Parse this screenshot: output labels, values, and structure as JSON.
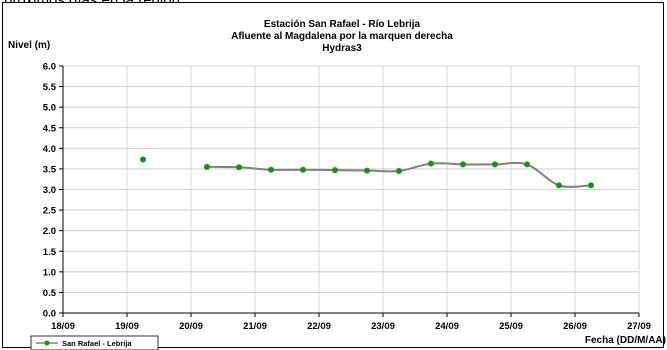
{
  "page": {
    "top_text": "próximos días en la región."
  },
  "chart_data": {
    "type": "scatter",
    "title": "Estación San Rafael - Río Lebrija",
    "subtitle": "Afluente al Magdalena por la marquen derecha",
    "subtitle2": "Hydras3",
    "xlabel": "Fecha (DD/M/AA)",
    "ylabel": "Nivel (m)",
    "ylim": [
      0,
      6
    ],
    "yticks": [
      "0.0",
      "0.5",
      "1.0",
      "1.5",
      "2.0",
      "2.5",
      "3.0",
      "3.5",
      "4.0",
      "4.5",
      "5.0",
      "5.5",
      "6.0"
    ],
    "xlim": [
      0,
      9
    ],
    "xticks": [
      "18/09",
      "19/09",
      "20/09",
      "21/09",
      "22/09",
      "23/09",
      "24/09",
      "25/09",
      "26/09",
      "27/09"
    ],
    "grid": true,
    "legend_position": "bottom-left",
    "series": [
      {
        "name": "San Rafael - Lebrija",
        "color": "#1e8c1e",
        "line_color": "#808080",
        "x": [
          1.25,
          2.25,
          2.75,
          3.25,
          3.75,
          4.25,
          4.75,
          5.25,
          5.75,
          6.25,
          6.75,
          7.25,
          7.75,
          8.25
        ],
        "y": [
          3.73,
          3.55,
          3.54,
          3.48,
          3.48,
          3.47,
          3.46,
          3.45,
          3.63,
          3.61,
          3.61,
          3.61,
          3.1,
          3.1
        ],
        "line_from_index": 1
      }
    ]
  }
}
